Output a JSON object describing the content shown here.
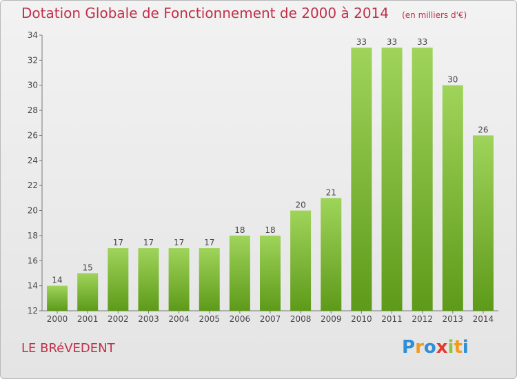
{
  "title": "Dotation Globale de Fonctionnement de 2000 à 2014",
  "unit_note": "(en milliers d'€)",
  "commune": "LE BRéVEDENT",
  "logo": {
    "letters": [
      {
        "ch": "P",
        "color": "#2e8fd6"
      },
      {
        "ch": "r",
        "color": "#f29a1d"
      },
      {
        "ch": "o",
        "color": "#2e8fd6"
      },
      {
        "ch": "x",
        "color": "#e23b2e"
      },
      {
        "ch": "i",
        "color": "#8cc63f"
      },
      {
        "ch": "t",
        "color": "#f29a1d"
      },
      {
        "ch": "i",
        "color": "#2e8fd6"
      }
    ]
  },
  "chart_data": {
    "type": "bar",
    "categories": [
      "2000",
      "2001",
      "2002",
      "2003",
      "2004",
      "2005",
      "2006",
      "2007",
      "2008",
      "2009",
      "2010",
      "2011",
      "2012",
      "2013",
      "2014"
    ],
    "values": [
      14,
      15,
      17,
      17,
      17,
      17,
      18,
      18,
      20,
      21,
      33,
      33,
      33,
      30,
      26
    ],
    "ylim": [
      12,
      34
    ],
    "yticks": [
      12,
      14,
      16,
      18,
      20,
      22,
      24,
      26,
      28,
      30,
      32,
      34
    ],
    "grid": false,
    "colors": {
      "bar_light": "#9fd45a",
      "bar_dark": "#5e9a1a",
      "title": "#c0304a"
    }
  }
}
